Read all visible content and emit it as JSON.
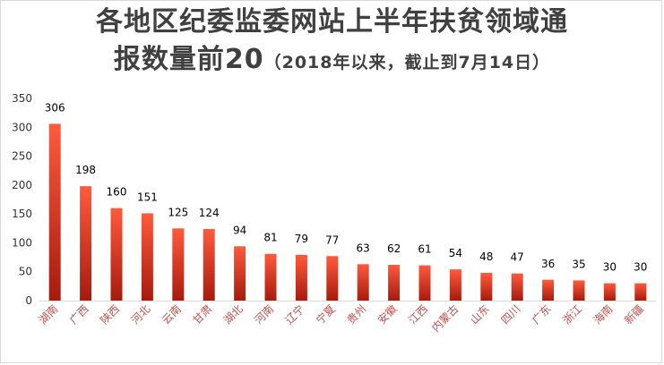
{
  "chart_data": {
    "type": "bar",
    "title_line1": "各地区纪委监委网站上半年扶贫领域通",
    "title_line2_main": "报数量前20",
    "title_line2_sub": "（2018年以来，截止到7月14日）",
    "categories": [
      "湖南",
      "广西",
      "陕西",
      "河北",
      "云南",
      "甘肃",
      "湖北",
      "河南",
      "辽宁",
      "宁夏",
      "贵州",
      "安徽",
      "江西",
      "内蒙古",
      "山东",
      "四川",
      "广东",
      "浙江",
      "海南",
      "新疆"
    ],
    "values": [
      306,
      198,
      160,
      151,
      125,
      124,
      94,
      81,
      79,
      77,
      63,
      62,
      61,
      54,
      48,
      47,
      36,
      35,
      30,
      30
    ],
    "yticks": [
      0,
      50,
      100,
      150,
      200,
      250,
      300,
      350
    ],
    "ylim": [
      0,
      350
    ],
    "grid": false,
    "legend": "none",
    "colors": {
      "bar_top": "#ff5a3c",
      "bar_bottom": "#a61b0e",
      "category_text": "#c0504d"
    }
  }
}
